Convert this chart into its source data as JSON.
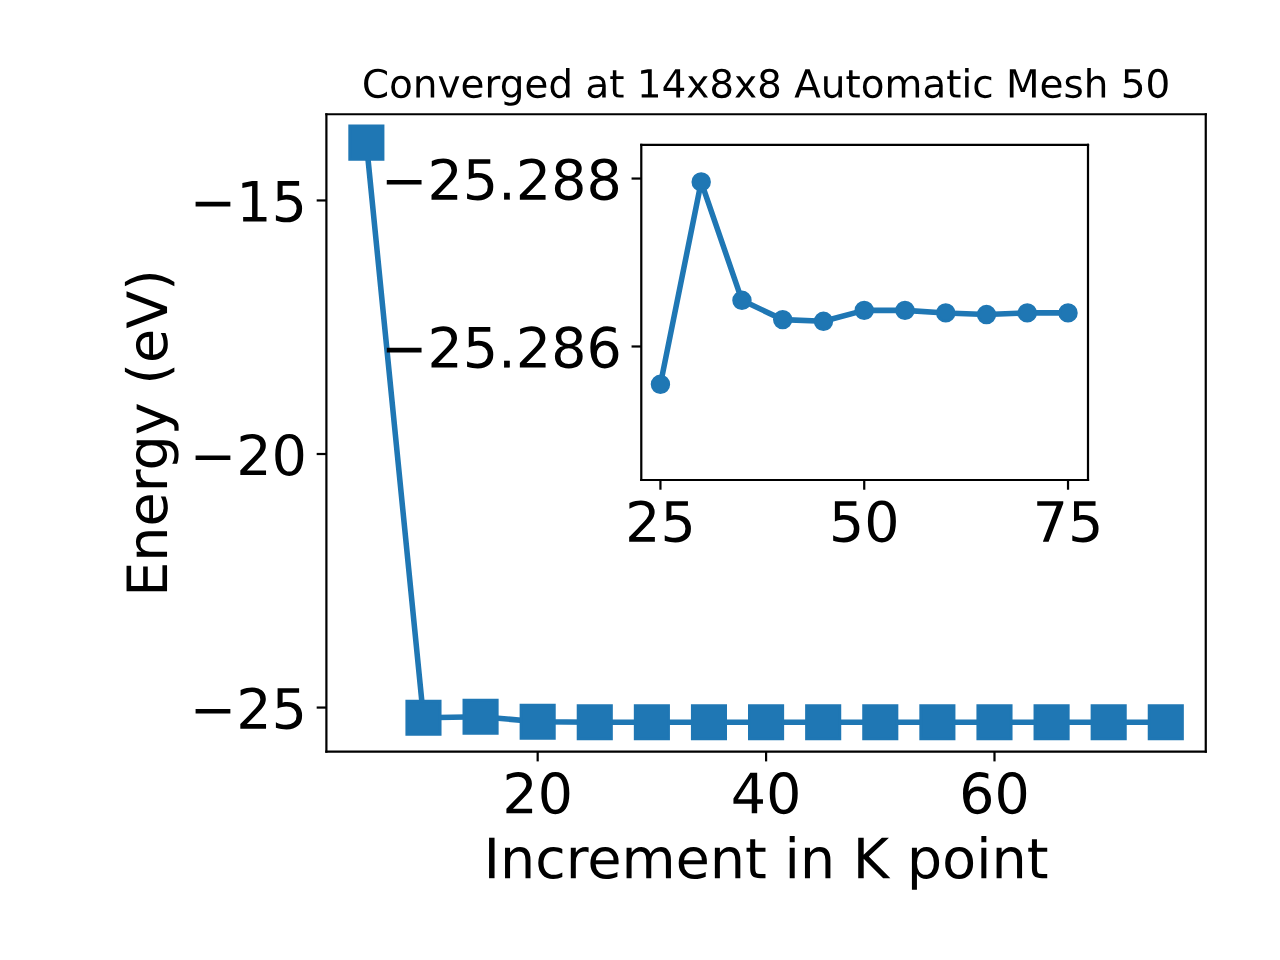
{
  "chart_data": [
    {
      "type": "line",
      "title": "Converged at 14x8x8 Automatic Mesh 50",
      "xlabel": "Increment in K point",
      "ylabel": "Energy (eV)",
      "x": [
        5,
        10,
        15,
        20,
        25,
        30,
        35,
        40,
        45,
        50,
        55,
        60,
        65,
        70,
        75
      ],
      "series": [
        {
          "color": "#1f77b4",
          "values": [
            -13.86,
            -25.2,
            -25.18,
            -25.28,
            -25.29,
            -25.29,
            -25.29,
            -25.29,
            -25.29,
            -25.29,
            -25.29,
            -25.29,
            -25.29,
            -25.29,
            -25.29
          ]
        }
      ],
      "xlim": [
        1.5,
        78.5
      ],
      "xticks": [
        20,
        40,
        60
      ],
      "ylim": [
        -25.87,
        -13.3
      ],
      "yticks": [
        {
          "value": -15,
          "label": "−15"
        },
        {
          "value": -20,
          "label": "−20"
        },
        {
          "value": -25,
          "label": "−25"
        }
      ],
      "marker": "square",
      "line_style": "solid",
      "grid": false,
      "legend": false
    },
    {
      "type": "line",
      "x": [
        25,
        30,
        35,
        40,
        45,
        50,
        55,
        60,
        65,
        70,
        75
      ],
      "series": [
        {
          "color": "#1f77b4",
          "values": [
            -25.28555,
            -25.28796,
            -25.28655,
            -25.28632,
            -25.2863,
            -25.28643,
            -25.28643,
            -25.2864,
            -25.28638,
            -25.2864,
            -25.2864
          ]
        }
      ],
      "xlim": [
        22.65,
        77.45
      ],
      "xticks": [
        25,
        50,
        75
      ],
      "ylim": [
        -25.28441,
        -25.2884
      ],
      "yticks": [
        {
          "value": -25.288,
          "label": "−25.288"
        },
        {
          "value": -25.286,
          "label": "−25.286"
        }
      ],
      "marker": "circle",
      "line_style": "solid",
      "grid": false,
      "legend": false
    }
  ]
}
